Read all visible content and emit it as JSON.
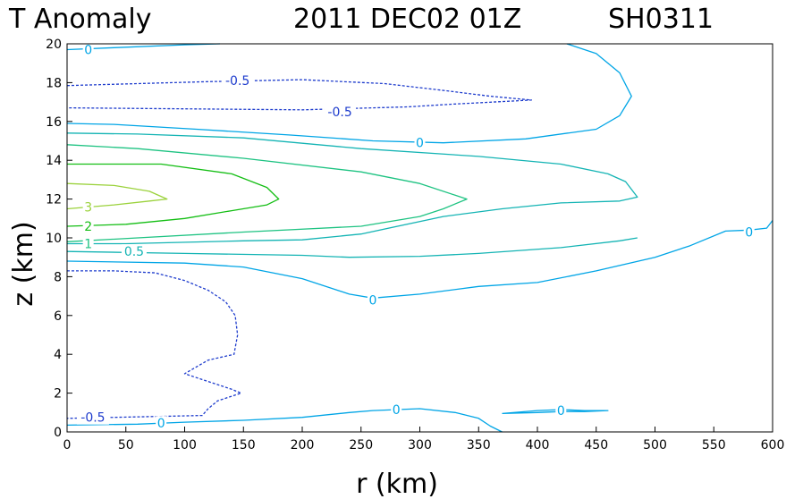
{
  "chart_data": {
    "type": "contour",
    "title": {
      "variable": "T Anomaly",
      "datetime": "2011 DEC02 01Z",
      "storm_id": "SH0311"
    },
    "xlabel": "r (km)",
    "ylabel": "z (km)",
    "xlim": [
      0,
      600
    ],
    "ylim": [
      0,
      20
    ],
    "x_ticks": [
      0,
      50,
      100,
      150,
      200,
      250,
      300,
      350,
      400,
      450,
      500,
      550,
      600
    ],
    "y_ticks": [
      0,
      2,
      4,
      6,
      8,
      10,
      12,
      14,
      16,
      18,
      20
    ],
    "colors": {
      "neg_0_5": "#1e3ccd",
      "zero": "#00a5e6",
      "pos_0_5": "#14b4b4",
      "pos_1": "#1ec382",
      "pos_2": "#14be14",
      "pos_3": "#9bd23c"
    },
    "contour_labels": [
      {
        "text": "0",
        "level": 0,
        "r": 18,
        "z": 19.7
      },
      {
        "text": "-0.5",
        "level": -0.5,
        "r": 145,
        "z": 18.1
      },
      {
        "text": "-0.5",
        "level": -0.5,
        "r": 232,
        "z": 16.5
      },
      {
        "text": "0",
        "level": 0,
        "r": 300,
        "z": 14.9
      },
      {
        "text": "3",
        "level": 3,
        "r": 18,
        "z": 11.6
      },
      {
        "text": "2",
        "level": 2,
        "r": 18,
        "z": 10.6
      },
      {
        "text": "1",
        "level": 1,
        "r": 18,
        "z": 9.7
      },
      {
        "text": "0.5",
        "level": 0.5,
        "r": 57,
        "z": 9.3
      },
      {
        "text": "0",
        "level": 0,
        "r": 580,
        "z": 10.3
      },
      {
        "text": "0",
        "level": 0,
        "r": 260,
        "z": 6.8
      },
      {
        "text": "-0.5",
        "level": -0.5,
        "r": 22,
        "z": 0.75
      },
      {
        "text": "0",
        "level": 0,
        "r": 80,
        "z": 0.45
      },
      {
        "text": "0",
        "level": 0,
        "r": 280,
        "z": 1.15
      },
      {
        "text": "0",
        "level": 0,
        "r": 420,
        "z": 1.1
      }
    ],
    "series": [
      {
        "name": "0 upper",
        "level": 0,
        "style": "solid",
        "points": [
          [
            0,
            19.7
          ],
          [
            40,
            19.8
          ],
          [
            100,
            19.95
          ],
          [
            130,
            20.0
          ]
        ]
      },
      {
        "name": "0 upper closed",
        "level": 0,
        "style": "solid",
        "points": [
          [
            425,
            20.0
          ],
          [
            450,
            19.5
          ],
          [
            470,
            18.5
          ],
          [
            480,
            17.3
          ],
          [
            470,
            16.3
          ],
          [
            450,
            15.6
          ],
          [
            390,
            15.1
          ],
          [
            320,
            14.9
          ],
          [
            260,
            15.0
          ],
          [
            190,
            15.3
          ],
          [
            110,
            15.6
          ],
          [
            40,
            15.85
          ],
          [
            0,
            15.9
          ]
        ]
      },
      {
        "name": "-0.5 upper",
        "level": -0.5,
        "style": "dashed",
        "points": [
          [
            0,
            17.85
          ],
          [
            60,
            17.95
          ],
          [
            120,
            18.05
          ],
          [
            200,
            18.15
          ],
          [
            270,
            17.95
          ],
          [
            320,
            17.6
          ],
          [
            360,
            17.3
          ],
          [
            395,
            17.1
          ],
          [
            330,
            16.9
          ],
          [
            290,
            16.75
          ],
          [
            200,
            16.6
          ],
          [
            100,
            16.65
          ],
          [
            0,
            16.7
          ]
        ]
      },
      {
        "name": "0.5 upper",
        "level": 0.5,
        "style": "solid",
        "points": [
          [
            0,
            15.4
          ],
          [
            60,
            15.35
          ],
          [
            150,
            15.15
          ],
          [
            250,
            14.6
          ],
          [
            350,
            14.2
          ],
          [
            420,
            13.8
          ],
          [
            460,
            13.3
          ],
          [
            475,
            12.9
          ],
          [
            485,
            12.1
          ],
          [
            470,
            11.9
          ],
          [
            420,
            11.8
          ],
          [
            370,
            11.5
          ],
          [
            320,
            11.1
          ],
          [
            250,
            10.2
          ],
          [
            200,
            9.9
          ],
          [
            150,
            9.85
          ],
          [
            50,
            9.7
          ],
          [
            0,
            9.7
          ]
        ]
      },
      {
        "name": "1",
        "level": 1,
        "style": "solid",
        "points": [
          [
            0,
            14.8
          ],
          [
            60,
            14.6
          ],
          [
            150,
            14.1
          ],
          [
            250,
            13.4
          ],
          [
            300,
            12.8
          ],
          [
            330,
            12.2
          ],
          [
            340,
            12.0
          ],
          [
            320,
            11.5
          ],
          [
            300,
            11.1
          ],
          [
            250,
            10.6
          ],
          [
            150,
            10.3
          ],
          [
            60,
            10.0
          ],
          [
            0,
            9.8
          ]
        ]
      },
      {
        "name": "2",
        "level": 2,
        "style": "solid",
        "points": [
          [
            0,
            13.8
          ],
          [
            80,
            13.8
          ],
          [
            140,
            13.3
          ],
          [
            170,
            12.6
          ],
          [
            180,
            12.0
          ],
          [
            170,
            11.7
          ],
          [
            140,
            11.4
          ],
          [
            100,
            11.0
          ],
          [
            50,
            10.7
          ],
          [
            0,
            10.6
          ]
        ]
      },
      {
        "name": "3",
        "level": 3,
        "style": "solid",
        "points": [
          [
            0,
            12.8
          ],
          [
            40,
            12.7
          ],
          [
            70,
            12.4
          ],
          [
            85,
            12.0
          ],
          [
            70,
            11.9
          ],
          [
            40,
            11.7
          ],
          [
            0,
            11.5
          ]
        ]
      },
      {
        "name": "0.5 lower",
        "level": 0.5,
        "style": "solid",
        "points": [
          [
            0,
            9.3
          ],
          [
            100,
            9.2
          ],
          [
            200,
            9.1
          ],
          [
            240,
            9.0
          ],
          [
            300,
            9.05
          ],
          [
            350,
            9.2
          ],
          [
            420,
            9.5
          ],
          [
            470,
            9.85
          ],
          [
            485,
            10.0
          ]
        ]
      },
      {
        "name": "0 middle",
        "level": 0,
        "style": "solid",
        "points": [
          [
            0,
            8.8
          ],
          [
            100,
            8.7
          ],
          [
            150,
            8.5
          ],
          [
            200,
            7.9
          ],
          [
            240,
            7.1
          ],
          [
            260,
            6.9
          ],
          [
            300,
            7.1
          ],
          [
            350,
            7.5
          ],
          [
            400,
            7.7
          ],
          [
            450,
            8.3
          ],
          [
            500,
            9.0
          ],
          [
            530,
            9.6
          ],
          [
            560,
            10.35
          ],
          [
            580,
            10.4
          ],
          [
            595,
            10.5
          ],
          [
            600,
            10.9
          ]
        ]
      },
      {
        "name": "-0.5 middle",
        "level": -0.5,
        "style": "dashed",
        "points": [
          [
            0,
            8.3
          ],
          [
            40,
            8.3
          ],
          [
            75,
            8.2
          ],
          [
            100,
            7.8
          ],
          [
            120,
            7.3
          ],
          [
            135,
            6.7
          ],
          [
            143,
            6.0
          ],
          [
            145,
            5.0
          ],
          [
            142,
            4.0
          ],
          [
            120,
            3.7
          ],
          [
            100,
            3.0
          ],
          [
            120,
            2.6
          ],
          [
            140,
            2.2
          ],
          [
            148,
            2.0
          ],
          [
            128,
            1.6
          ],
          [
            120,
            1.2
          ],
          [
            115,
            0.85
          ],
          [
            80,
            0.8
          ],
          [
            40,
            0.75
          ],
          [
            0,
            0.7
          ]
        ]
      },
      {
        "name": "0 bottom",
        "level": 0,
        "style": "solid",
        "points": [
          [
            0,
            0.35
          ],
          [
            60,
            0.4
          ],
          [
            100,
            0.5
          ],
          [
            150,
            0.6
          ],
          [
            200,
            0.75
          ],
          [
            240,
            1.0
          ],
          [
            260,
            1.1
          ],
          [
            300,
            1.2
          ],
          [
            330,
            1.0
          ],
          [
            350,
            0.7
          ],
          [
            360,
            0.3
          ],
          [
            370,
            0.0
          ]
        ]
      },
      {
        "name": "0 bottom closed",
        "level": 0,
        "style": "solid",
        "points": [
          [
            370,
            0.95
          ],
          [
            400,
            1.0
          ],
          [
            420,
            1.05
          ],
          [
            440,
            1.05
          ],
          [
            460,
            1.1
          ],
          [
            440,
            1.1
          ],
          [
            420,
            1.15
          ],
          [
            400,
            1.1
          ],
          [
            370,
            0.95
          ]
        ]
      }
    ]
  }
}
